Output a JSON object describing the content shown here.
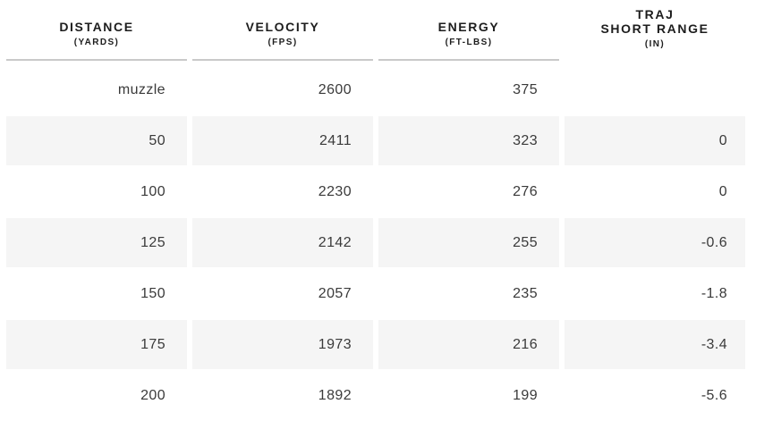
{
  "chart_data": {
    "type": "table",
    "columns": [
      {
        "label": "DISTANCE",
        "sub": "(YARDS)"
      },
      {
        "label": "VELOCITY",
        "sub": "(FPS)"
      },
      {
        "label": "ENERGY",
        "sub": "(FT-LBS)"
      },
      {
        "label_line1": "TRAJ",
        "label": "SHORT RANGE",
        "sub": "(IN)"
      }
    ],
    "rows": [
      [
        "muzzle",
        "2600",
        "375",
        ""
      ],
      [
        "50",
        "2411",
        "323",
        "0"
      ],
      [
        "100",
        "2230",
        "276",
        "0"
      ],
      [
        "125",
        "2142",
        "255",
        "-0.6"
      ],
      [
        "150",
        "2057",
        "235",
        "-1.8"
      ],
      [
        "175",
        "1973",
        "216",
        "-3.4"
      ],
      [
        "200",
        "1892",
        "199",
        "-5.6"
      ]
    ],
    "layout_hints": {
      "striped_row_indices": [
        1,
        3,
        5
      ],
      "value_alignment": "right",
      "header_alignment": "center"
    }
  },
  "colors": {
    "stripe_bg": "#f5f5f5",
    "divider": "#c9c9c9",
    "header_text": "#1d1d1d",
    "cell_text": "#3a3a3a"
  }
}
